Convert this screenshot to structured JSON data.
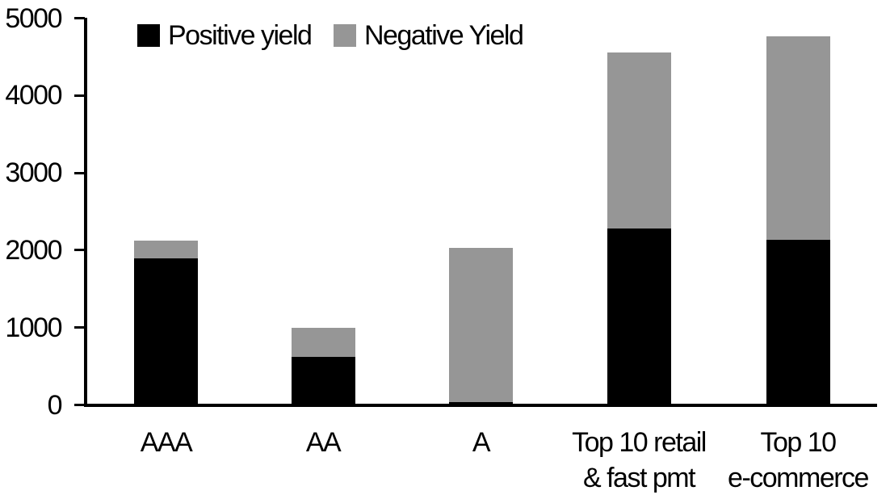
{
  "chart_data": {
    "type": "bar",
    "stacked": true,
    "title": "",
    "xlabel": "",
    "ylabel": "",
    "categories": [
      "AAA",
      "AA",
      "A",
      "Top 10 retail\n& fast pmt",
      "Top 10\ne-commerce"
    ],
    "series": [
      {
        "name": "Positive yield",
        "color": "#000000",
        "values": [
          1900,
          620,
          40,
          2280,
          2140
        ]
      },
      {
        "name": "Negative Yield",
        "color": "#969696",
        "values": [
          220,
          380,
          1990,
          2280,
          2630
        ]
      }
    ],
    "totals": [
      2120,
      1000,
      2030,
      4560,
      4770
    ],
    "y_axis": {
      "min": 0,
      "max": 5000,
      "tick_step": 1000,
      "ticks": [
        0,
        1000,
        2000,
        3000,
        4000,
        5000
      ]
    },
    "legend_position": "top-left-inside",
    "grid": false,
    "colors": {
      "axis": "#000000",
      "background": "#ffffff",
      "text": "#000000"
    }
  }
}
